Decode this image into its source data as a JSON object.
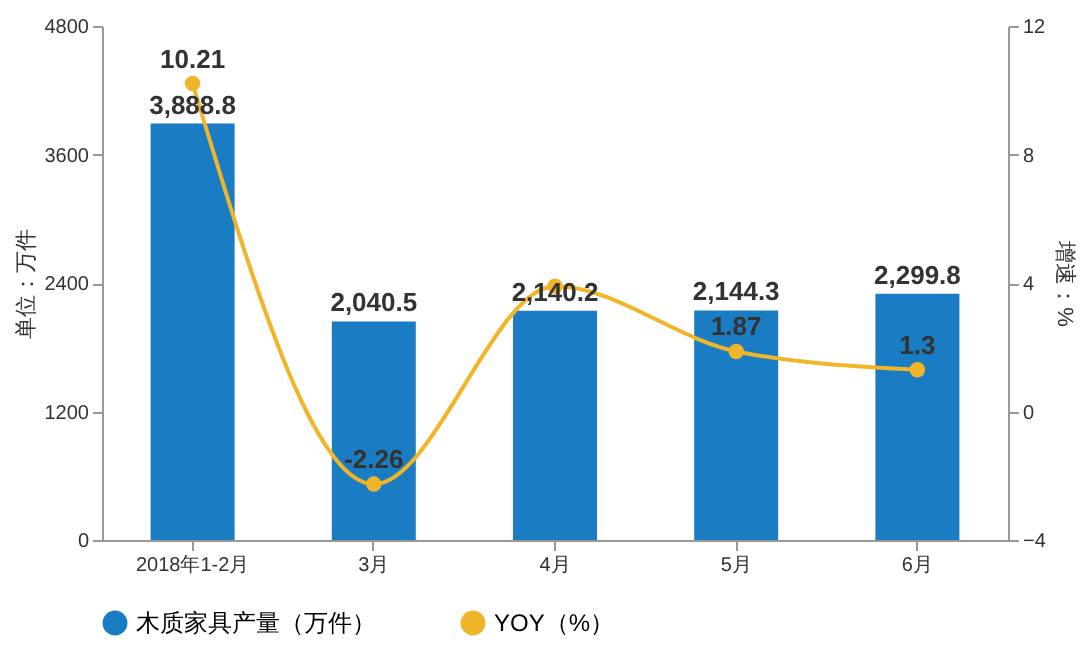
{
  "chart_data": {
    "type": "bar",
    "categories": [
      "2018年1-2月",
      "3月",
      "4月",
      "5月",
      "6月"
    ],
    "ylabel": "单位：万件",
    "y2label": "增速：%",
    "ylim": [
      0,
      4800
    ],
    "yticks": [
      0,
      1200,
      2400,
      3600,
      4800
    ],
    "y2lim": [
      -4,
      12
    ],
    "y2ticks": [
      -4,
      0,
      4,
      8,
      12
    ],
    "series": [
      {
        "name": "木质家具产量（万件）",
        "color": "#1a7dc4",
        "values": [
          3888.8,
          2040.5,
          2140.2,
          2144.3,
          2299.8
        ],
        "value_labels": [
          "3,888.8",
          "2,040.5",
          "2,140.2",
          "2,144.3",
          "2,299.8"
        ]
      },
      {
        "name": "YOY（%）",
        "type": "line",
        "axis": "y2",
        "color": "#f0b528",
        "values": [
          10.21,
          -2.26,
          3.9,
          1.87,
          1.3
        ],
        "value_labels": [
          "10.21",
          "-2.26",
          null,
          "1.87",
          "1.3"
        ],
        "marker": "circle",
        "line_style": "solid"
      }
    ],
    "legend": "bottom",
    "grid": false
  }
}
